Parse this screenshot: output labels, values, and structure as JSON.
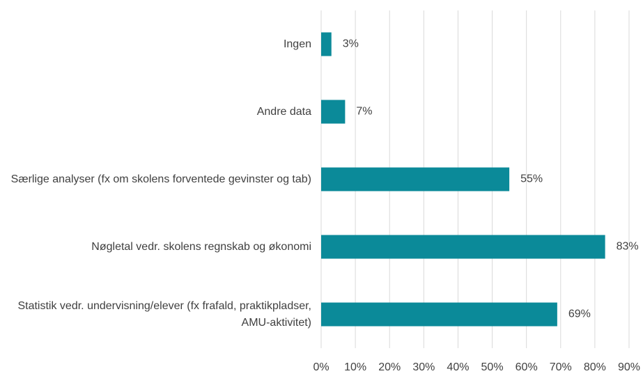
{
  "chart_data": {
    "type": "barh",
    "categories": [
      "Ingen",
      "Andre data",
      "Særlige analyser (fx om skolens forventede gevinster og tab)",
      "Nøgletal vedr. skolens regnskab og økonomi",
      "Statistik vedr. undervisning/elever (fx frafald, praktikpladser, AMU-aktivitet)"
    ],
    "values": [
      3,
      7,
      55,
      83,
      69
    ],
    "value_labels": [
      "3%",
      "7%",
      "55%",
      "83%",
      "69%"
    ],
    "color": "#0b8a99",
    "xlim": [
      0,
      90
    ],
    "xticks": [
      {
        "value": 0,
        "label": "0%"
      },
      {
        "value": 10,
        "label": "10%"
      },
      {
        "value": 20,
        "label": "20%"
      },
      {
        "value": 30,
        "label": "30%"
      },
      {
        "value": 40,
        "label": "40%"
      },
      {
        "value": 50,
        "label": "50%"
      },
      {
        "value": 60,
        "label": "60%"
      },
      {
        "value": 70,
        "label": "70%"
      },
      {
        "value": 80,
        "label": "80%"
      },
      {
        "value": 90,
        "label": "90%"
      }
    ],
    "grid": true
  }
}
